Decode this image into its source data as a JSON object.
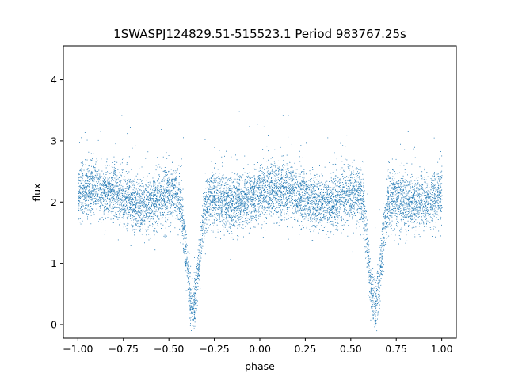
{
  "chart_data": {
    "type": "scatter",
    "title": "1SWASPJ124829.51-515523.1 Period 983767.25s",
    "xlabel": "phase",
    "ylabel": "flux",
    "xlim": [
      -1.08,
      1.08
    ],
    "ylim": [
      -0.22,
      4.55
    ],
    "x_ticks": [
      -1.0,
      -0.75,
      -0.5,
      -0.25,
      0.0,
      0.25,
      0.5,
      0.75,
      1.0
    ],
    "x_tick_labels": [
      "−1.00",
      "−0.75",
      "−0.50",
      "−0.25",
      "0.00",
      "0.25",
      "0.50",
      "0.75",
      "1.00"
    ],
    "y_ticks": [
      0,
      1,
      2,
      3,
      4
    ],
    "y_tick_labels": [
      "0",
      "1",
      "2",
      "3",
      "4"
    ],
    "grid": false,
    "marker_color": "#1f77b4",
    "phase_range": [
      -1.0,
      1.0
    ],
    "baseline_flux": 2.1,
    "point_scatter": 0.22,
    "eclipse_centers": [
      -0.37,
      0.63
    ],
    "eclipse_min_flux": 0.15,
    "eclipse_half_width": 0.06,
    "n_points": 9000
  }
}
